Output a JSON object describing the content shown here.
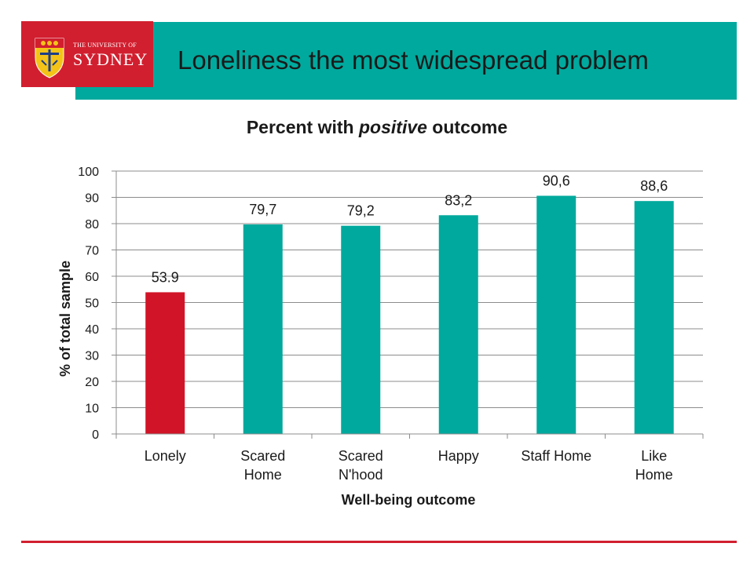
{
  "header": {
    "logo_line1": "THE UNIVERSITY OF",
    "logo_line2": "SYDNEY",
    "title": "Loneliness the most widespread problem"
  },
  "chart_title": {
    "prefix": "Percent with ",
    "emphasis": "positive",
    "suffix": " outcome"
  },
  "colors": {
    "brand_red": "#d11f2f",
    "teal": "#00a99d",
    "lonely_bar": "#d11427",
    "other_bar": "#00a99d"
  },
  "chart_data": {
    "type": "bar",
    "title": "Percent with positive outcome",
    "xlabel": "Well-being outcome",
    "ylabel": "% of total sample",
    "ylim": [
      0,
      100
    ],
    "yticks": [
      0,
      10,
      20,
      30,
      40,
      50,
      60,
      70,
      80,
      90,
      100
    ],
    "grid": true,
    "categories": [
      [
        "Lonely"
      ],
      [
        "Scared",
        "Home"
      ],
      [
        "Scared",
        "N'hood"
      ],
      [
        "Happy"
      ],
      [
        "Staff Home"
      ],
      [
        "Like",
        "Home"
      ]
    ],
    "values": [
      53.9,
      79.7,
      79.2,
      83.2,
      90.6,
      88.6
    ],
    "value_labels": [
      "53.9",
      "79,7",
      "79,2",
      "83,2",
      "90,6",
      "88,6"
    ],
    "bar_colors": [
      "#d11427",
      "#00a99d",
      "#00a99d",
      "#00a99d",
      "#00a99d",
      "#00a99d"
    ]
  }
}
